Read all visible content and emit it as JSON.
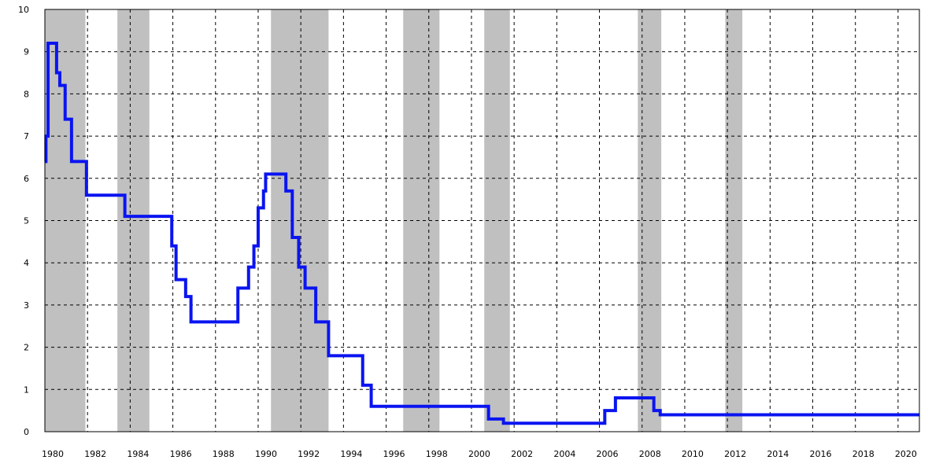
{
  "chart_data": {
    "type": "line",
    "title": "",
    "xlabel": "",
    "ylabel": "",
    "xlim": [
      1980,
      2021
    ],
    "ylim": [
      0,
      10
    ],
    "x_ticks": [
      "1980",
      "1982",
      "1984",
      "1986",
      "1988",
      "1990",
      "1992",
      "1994",
      "1996",
      "1998",
      "2000",
      "2002",
      "2004",
      "2006",
      "2008",
      "2010",
      "2012",
      "2014",
      "2016",
      "2018",
      "2020"
    ],
    "y_ticks": [
      "0",
      "1",
      "2",
      "3",
      "4",
      "5",
      "6",
      "7",
      "8",
      "9",
      "10"
    ],
    "grid": true,
    "legend": "none",
    "colors": {
      "series": "#0a14f0",
      "bands": "#c0c0c0",
      "grid": "#000000"
    },
    "shaded_periods": [
      [
        1980,
        1981.9
      ],
      [
        1983.4,
        1984.9
      ],
      [
        1990.6,
        1993.3
      ],
      [
        1996.8,
        1998.5
      ],
      [
        2000.6,
        2001.8
      ],
      [
        2007.8,
        2008.9
      ],
      [
        2011.9,
        2012.7
      ]
    ],
    "series": [
      {
        "type": "step",
        "points": [
          [
            1980.0,
            6.4
          ],
          [
            1980.05,
            7.0
          ],
          [
            1980.15,
            9.2
          ],
          [
            1980.55,
            8.5
          ],
          [
            1980.7,
            8.2
          ],
          [
            1980.95,
            7.4
          ],
          [
            1981.25,
            6.4
          ],
          [
            1981.95,
            5.6
          ],
          [
            1983.75,
            5.1
          ],
          [
            1985.95,
            4.4
          ],
          [
            1986.15,
            3.6
          ],
          [
            1986.6,
            3.2
          ],
          [
            1986.85,
            2.6
          ],
          [
            1989.05,
            3.4
          ],
          [
            1989.35,
            3.4
          ],
          [
            1989.55,
            3.9
          ],
          [
            1989.8,
            4.4
          ],
          [
            1990.0,
            5.3
          ],
          [
            1990.25,
            5.7
          ],
          [
            1990.35,
            6.1
          ],
          [
            1991.3,
            5.7
          ],
          [
            1991.6,
            4.6
          ],
          [
            1991.9,
            3.9
          ],
          [
            1992.2,
            3.4
          ],
          [
            1992.7,
            2.6
          ],
          [
            1993.3,
            1.8
          ],
          [
            1994.9,
            1.1
          ],
          [
            1995.3,
            0.6
          ],
          [
            2000.8,
            0.3
          ],
          [
            2001.5,
            0.2
          ],
          [
            2006.25,
            0.5
          ],
          [
            2006.75,
            0.8
          ],
          [
            2008.55,
            0.5
          ],
          [
            2008.85,
            0.4
          ],
          [
            2021.0,
            0.4
          ]
        ]
      }
    ]
  }
}
